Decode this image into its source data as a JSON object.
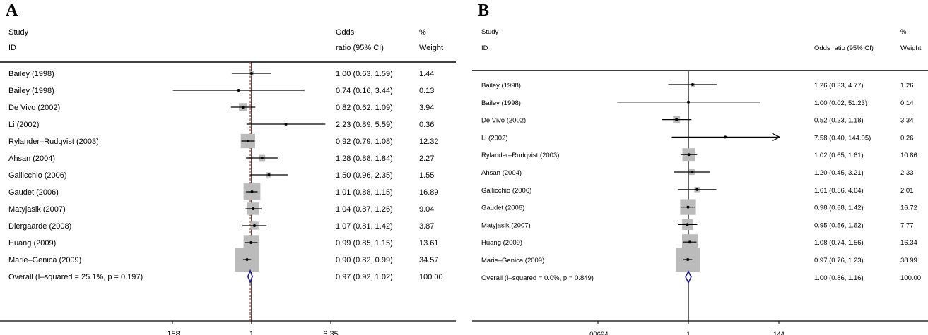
{
  "chart_data": [
    {
      "type": "forest",
      "panel_label": "A",
      "header": {
        "study_line1": "Study",
        "study_line2": "ID",
        "or_line1": "Odds",
        "or_line2": "ratio (95% CI)",
        "weight_line1": "%",
        "weight_line2": "Weight"
      },
      "xscale": "log",
      "xlim": [
        0.158,
        6.35
      ],
      "xticks": [
        ".158",
        "1",
        "6.35"
      ],
      "xtick_values": [
        0.158,
        1,
        6.35
      ],
      "null_line": 1,
      "overall_reference_line": 0.97,
      "arrow_color": "#000000",
      "box_color": "#bbbbbb",
      "diamond_color": "#1a1a7a",
      "ref_line_color": "#c0392b",
      "studies": [
        {
          "id": "Bailey (1998)",
          "or": 1.0,
          "lo": 0.63,
          "hi": 1.59,
          "ci_text": "1.00 (0.63, 1.59)",
          "weight": "1.44"
        },
        {
          "id": "Bailey (1998)",
          "or": 0.74,
          "lo": 0.16,
          "hi": 3.44,
          "ci_text": "0.74 (0.16, 3.44)",
          "weight": "0.13"
        },
        {
          "id": "De Vivo (2002)",
          "or": 0.82,
          "lo": 0.62,
          "hi": 1.09,
          "ci_text": "0.82 (0.62, 1.09)",
          "weight": "3.94"
        },
        {
          "id": "Li (2002)",
          "or": 2.23,
          "lo": 0.89,
          "hi": 5.59,
          "ci_text": "2.23 (0.89, 5.59)",
          "weight": "0.36"
        },
        {
          "id": "Rylander–Rudqvist (2003)",
          "or": 0.92,
          "lo": 0.79,
          "hi": 1.08,
          "ci_text": "0.92 (0.79, 1.08)",
          "weight": "12.32"
        },
        {
          "id": "Ahsan (2004)",
          "or": 1.28,
          "lo": 0.88,
          "hi": 1.84,
          "ci_text": "1.28 (0.88, 1.84)",
          "weight": "2.27"
        },
        {
          "id": "Gallicchio (2006)",
          "or": 1.5,
          "lo": 0.96,
          "hi": 2.35,
          "ci_text": "1.50 (0.96, 2.35)",
          "weight": "1.55"
        },
        {
          "id": "Gaudet (2006)",
          "or": 1.01,
          "lo": 0.88,
          "hi": 1.15,
          "ci_text": "1.01 (0.88, 1.15)",
          "weight": "16.89"
        },
        {
          "id": "Matyjasik (2007)",
          "or": 1.04,
          "lo": 0.87,
          "hi": 1.26,
          "ci_text": "1.04 (0.87, 1.26)",
          "weight": "9.04"
        },
        {
          "id": "Diergaarde (2008)",
          "or": 1.07,
          "lo": 0.81,
          "hi": 1.42,
          "ci_text": "1.07 (0.81, 1.42)",
          "weight": "3.87"
        },
        {
          "id": "Huang (2009)",
          "or": 0.99,
          "lo": 0.85,
          "hi": 1.15,
          "ci_text": "0.99 (0.85, 1.15)",
          "weight": "13.61"
        },
        {
          "id": "Marie–Genica (2009)",
          "or": 0.9,
          "lo": 0.82,
          "hi": 0.99,
          "ci_text": "0.90 (0.82, 0.99)",
          "weight": "34.57"
        }
      ],
      "overall": {
        "label": "Overall  (I–squared = 25.1%, p = 0.197)",
        "or": 0.97,
        "lo": 0.92,
        "hi": 1.02,
        "ci_text": "0.97 (0.92, 1.02)",
        "weight": "100.00"
      }
    },
    {
      "type": "forest",
      "panel_label": "B",
      "header": {
        "study_line1": "Study",
        "study_line2": "ID",
        "or_line1": "",
        "or_line2": "Odds ratio (95% CI)",
        "weight_line1": "%",
        "weight_line2": "Weight"
      },
      "xscale": "log",
      "xlim": [
        0.00694,
        144
      ],
      "xticks": [
        ".00694",
        "1",
        "144"
      ],
      "xtick_values": [
        0.00694,
        1,
        144
      ],
      "null_line": 1,
      "arrow_color": "#000000",
      "box_color": "#bbbbbb",
      "diamond_color": "#1a1a7a",
      "studies": [
        {
          "id": "Bailey (1998)",
          "or": 1.26,
          "lo": 0.33,
          "hi": 4.77,
          "ci_text": "1.26 (0.33, 4.77)",
          "weight": "1.26"
        },
        {
          "id": "Bailey (1998)",
          "or": 1.0,
          "lo": 0.02,
          "hi": 51.23,
          "ci_text": "1.00 (0.02, 51.23)",
          "weight": "0.14"
        },
        {
          "id": "De Vivo (2002)",
          "or": 0.52,
          "lo": 0.23,
          "hi": 1.18,
          "ci_text": "0.52 (0.23, 1.18)",
          "weight": "3.34"
        },
        {
          "id": "Li (2002)",
          "or": 7.58,
          "lo": 0.4,
          "hi": 144.05,
          "ci_text": "7.58 (0.40, 144.05)",
          "weight": "0.26"
        },
        {
          "id": "Rylander–Rudqvist (2003)",
          "or": 1.02,
          "lo": 0.65,
          "hi": 1.61,
          "ci_text": "1.02 (0.65, 1.61)",
          "weight": "10.86"
        },
        {
          "id": "Ahsan (2004)",
          "or": 1.2,
          "lo": 0.45,
          "hi": 3.21,
          "ci_text": "1.20 (0.45, 3.21)",
          "weight": "2.33"
        },
        {
          "id": "Gallicchio (2006)",
          "or": 1.61,
          "lo": 0.56,
          "hi": 4.64,
          "ci_text": "1.61 (0.56, 4.64)",
          "weight": "2.01"
        },
        {
          "id": "Gaudet (2006)",
          "or": 0.98,
          "lo": 0.68,
          "hi": 1.42,
          "ci_text": "0.98 (0.68, 1.42)",
          "weight": "16.72"
        },
        {
          "id": "Matyjasik (2007)",
          "or": 0.95,
          "lo": 0.56,
          "hi": 1.62,
          "ci_text": "0.95 (0.56, 1.62)",
          "weight": "7.77"
        },
        {
          "id": "Huang (2009)",
          "or": 1.08,
          "lo": 0.74,
          "hi": 1.56,
          "ci_text": "1.08 (0.74, 1.56)",
          "weight": "16.34"
        },
        {
          "id": "Marie–Genica (2009)",
          "or": 0.97,
          "lo": 0.76,
          "hi": 1.23,
          "ci_text": "0.97 (0.76, 1.23)",
          "weight": "38.99"
        }
      ],
      "overall": {
        "label": "Overall  (I–squared = 0.0%, p = 0.849)",
        "or": 1.0,
        "lo": 0.86,
        "hi": 1.16,
        "ci_text": "1.00 (0.86, 1.16)",
        "weight": "100.00"
      }
    }
  ]
}
